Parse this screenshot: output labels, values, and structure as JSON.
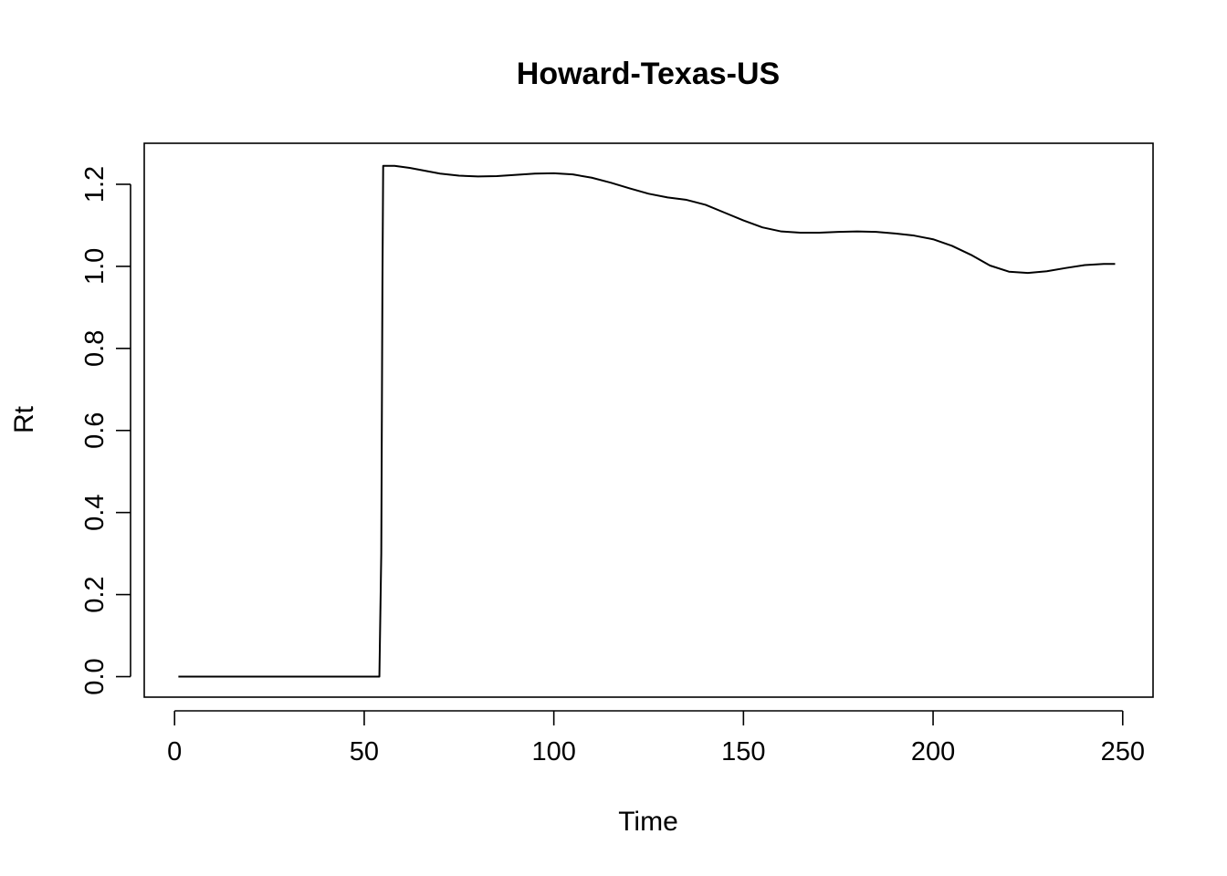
{
  "chart_data": {
    "type": "line",
    "title": "Howard-Texas-US",
    "xlabel": "Time",
    "ylabel": "Rt",
    "xlim": [
      -8,
      258
    ],
    "ylim": [
      -0.05,
      1.3
    ],
    "x_ticks": [
      0,
      50,
      100,
      150,
      200,
      250
    ],
    "y_ticks": [
      0.0,
      0.2,
      0.4,
      0.6,
      0.8,
      1.0,
      1.2
    ],
    "x_tick_labels": [
      "0",
      "50",
      "100",
      "150",
      "200",
      "250"
    ],
    "y_tick_labels": [
      "0.0",
      "0.2",
      "0.4",
      "0.6",
      "0.8",
      "1.0",
      "1.2"
    ],
    "grid": false,
    "series": [
      {
        "color": "#000000",
        "points": [
          [
            1,
            0.0
          ],
          [
            10,
            0.0
          ],
          [
            20,
            0.0
          ],
          [
            30,
            0.0
          ],
          [
            40,
            0.0
          ],
          [
            50,
            0.0
          ],
          [
            54,
            0.0
          ],
          [
            54.5,
            0.3
          ],
          [
            54.8,
            0.95
          ],
          [
            55,
            1.245
          ],
          [
            58,
            1.245
          ],
          [
            62,
            1.24
          ],
          [
            66,
            1.233
          ],
          [
            70,
            1.226
          ],
          [
            75,
            1.221
          ],
          [
            80,
            1.219
          ],
          [
            85,
            1.22
          ],
          [
            90,
            1.223
          ],
          [
            95,
            1.226
          ],
          [
            100,
            1.227
          ],
          [
            105,
            1.224
          ],
          [
            110,
            1.216
          ],
          [
            115,
            1.204
          ],
          [
            120,
            1.19
          ],
          [
            125,
            1.177
          ],
          [
            130,
            1.168
          ],
          [
            135,
            1.162
          ],
          [
            140,
            1.15
          ],
          [
            145,
            1.131
          ],
          [
            150,
            1.112
          ],
          [
            155,
            1.095
          ],
          [
            160,
            1.085
          ],
          [
            165,
            1.082
          ],
          [
            170,
            1.082
          ],
          [
            175,
            1.084
          ],
          [
            180,
            1.085
          ],
          [
            185,
            1.084
          ],
          [
            190,
            1.08
          ],
          [
            195,
            1.075
          ],
          [
            200,
            1.066
          ],
          [
            205,
            1.05
          ],
          [
            210,
            1.028
          ],
          [
            215,
            1.002
          ],
          [
            220,
            0.987
          ],
          [
            225,
            0.984
          ],
          [
            230,
            0.988
          ],
          [
            235,
            0.996
          ],
          [
            240,
            1.003
          ],
          [
            245,
            1.006
          ],
          [
            248,
            1.006
          ]
        ]
      }
    ]
  }
}
